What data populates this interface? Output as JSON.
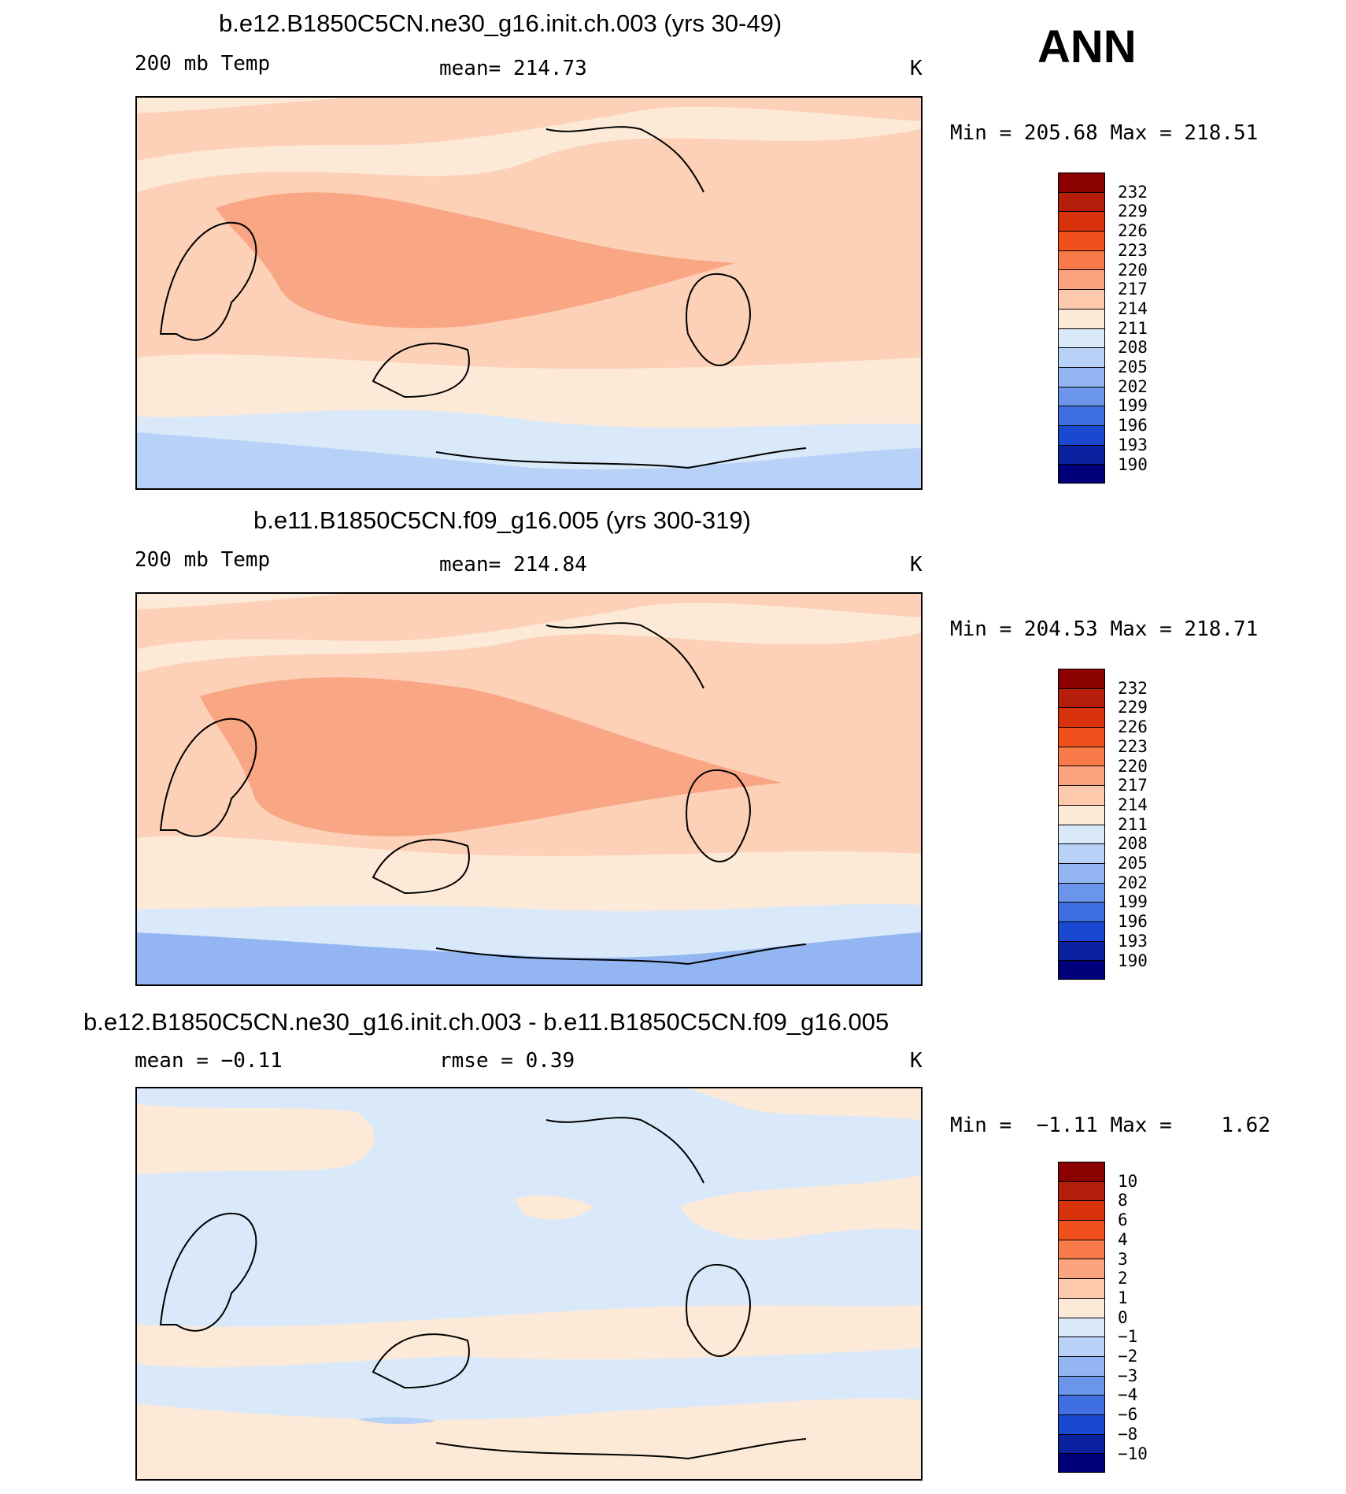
{
  "season": "ANN",
  "panels": [
    {
      "title": "b.e12.B1850C5CN.ne30_g16.init.ch.003 (yrs 30-49)",
      "left_label": "200 mb Temp",
      "center_label": "mean= 214.73",
      "units": "K",
      "minmax": "Min = 205.68 Max = 218.51",
      "colorbar_labels": [
        "232",
        "229",
        "226",
        "223",
        "220",
        "217",
        "214",
        "211",
        "208",
        "205",
        "202",
        "199",
        "196",
        "193",
        "190"
      ],
      "palette": [
        "#8b0000",
        "#b51e0a",
        "#d9330e",
        "#f0501c",
        "#f87a4a",
        "#fba27e",
        "#fdc9ad",
        "#fde9d8",
        "#d9e9f9",
        "#b8d1f7",
        "#93b6f2",
        "#6a95ea",
        "#3f6fe0",
        "#1a48d0",
        "#0a22a0",
        "#00007a"
      ],
      "fields": {
        "band_north": "#fdd0b8",
        "band_mid": "#fbb795",
        "core": "#f9a684",
        "south": "#fde9d8",
        "polar1": "#d9e9f9",
        "polar2": "#b8d1f7"
      }
    },
    {
      "title": "b.e11.B1850C5CN.f09_g16.005 (yrs 300-319)",
      "left_label": "200 mb Temp",
      "center_label": "mean= 214.84",
      "units": "K",
      "minmax": "Min = 204.53 Max = 218.71",
      "colorbar_labels": [
        "232",
        "229",
        "226",
        "223",
        "220",
        "217",
        "214",
        "211",
        "208",
        "205",
        "202",
        "199",
        "196",
        "193",
        "190"
      ],
      "palette": [
        "#8b0000",
        "#b51e0a",
        "#d9330e",
        "#f0501c",
        "#f87a4a",
        "#fba27e",
        "#fdc9ad",
        "#fde9d8",
        "#d9e9f9",
        "#b8d1f7",
        "#93b6f2",
        "#6a95ea",
        "#3f6fe0",
        "#1a48d0",
        "#0a22a0",
        "#00007a"
      ],
      "fields": {
        "band_north": "#fdd0b8",
        "band_mid": "#fbb795",
        "core": "#f9a684",
        "south": "#fde9d8",
        "polar1": "#d9e9f9",
        "polar2": "#93b6f2"
      }
    },
    {
      "title": "b.e12.B1850C5CN.ne30_g16.init.ch.003 - b.e11.B1850C5CN.f09_g16.005",
      "left_label": "mean =   −0.11",
      "center_label": "rmse =    0.39",
      "units": "K",
      "minmax": "Min =  −1.11 Max =    1.62",
      "colorbar_labels": [
        "10",
        "8",
        "6",
        "4",
        "3",
        "2",
        "1",
        "0",
        "−1",
        "−2",
        "−3",
        "−4",
        "−6",
        "−8",
        "−10"
      ],
      "palette": [
        "#8b0000",
        "#b51e0a",
        "#d9330e",
        "#f0501c",
        "#f87a4a",
        "#fba27e",
        "#fdc9ad",
        "#fde9d8",
        "#d9e9f9",
        "#b8d1f7",
        "#93b6f2",
        "#6a95ea",
        "#3f6fe0",
        "#1a48d0",
        "#0a22a0",
        "#00007a"
      ],
      "fields": {
        "base": "#d9e9f9",
        "warm": "#fde9d8",
        "cool": "#b8d1f7"
      }
    }
  ],
  "chart_data": [
    {
      "type": "heatmap",
      "title": "b.e12.B1850C5CN.ne30_g16.init.ch.003 (yrs 30-49)",
      "variable": "200 mb Temp",
      "units": "K",
      "mean": 214.73,
      "min": 205.68,
      "max": 218.51,
      "levels": [
        190,
        193,
        196,
        199,
        202,
        205,
        208,
        211,
        214,
        217,
        220,
        223,
        226,
        229,
        232
      ]
    },
    {
      "type": "heatmap",
      "title": "b.e11.B1850C5CN.f09_g16.005 (yrs 300-319)",
      "variable": "200 mb Temp",
      "units": "K",
      "mean": 214.84,
      "min": 204.53,
      "max": 218.71,
      "levels": [
        190,
        193,
        196,
        199,
        202,
        205,
        208,
        211,
        214,
        217,
        220,
        223,
        226,
        229,
        232
      ]
    },
    {
      "type": "heatmap",
      "title": "b.e12.B1850C5CN.ne30_g16.init.ch.003 - b.e11.B1850C5CN.f09_g16.005",
      "units": "K",
      "mean": -0.11,
      "rmse": 0.39,
      "min": -1.11,
      "max": 1.62,
      "levels": [
        -10,
        -8,
        -6,
        -4,
        -3,
        -2,
        -1,
        0,
        1,
        2,
        3,
        4,
        6,
        8,
        10
      ]
    }
  ]
}
